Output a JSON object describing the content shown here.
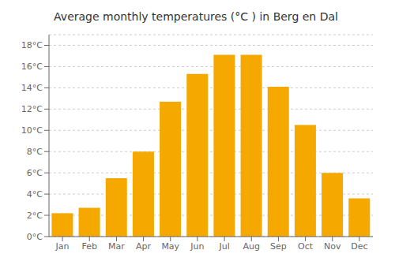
{
  "chart_data": {
    "type": "bar",
    "title": "Average monthly temperatures (°C ) in Berg en Dal",
    "categories": [
      "Jan",
      "Feb",
      "Mar",
      "Apr",
      "May",
      "Jun",
      "Jul",
      "Aug",
      "Sep",
      "Oct",
      "Nov",
      "Dec"
    ],
    "values": [
      2.2,
      2.7,
      5.5,
      8.0,
      12.7,
      15.3,
      17.1,
      17.1,
      14.1,
      10.5,
      6.0,
      3.6
    ],
    "color": "#F5A800",
    "ylim": [
      0,
      19
    ],
    "yticks": [
      {
        "value": 0,
        "label": "0°C"
      },
      {
        "value": 2,
        "label": "2°C"
      },
      {
        "value": 4,
        "label": "4°C"
      },
      {
        "value": 6,
        "label": "6°C"
      },
      {
        "value": 8,
        "label": "8°C"
      },
      {
        "value": 10,
        "label": "10°C"
      },
      {
        "value": 12,
        "label": "12°C"
      },
      {
        "value": 14,
        "label": "14°C"
      },
      {
        "value": 16,
        "label": "16°C"
      },
      {
        "value": 18,
        "label": "18°C"
      }
    ],
    "grid": true
  }
}
